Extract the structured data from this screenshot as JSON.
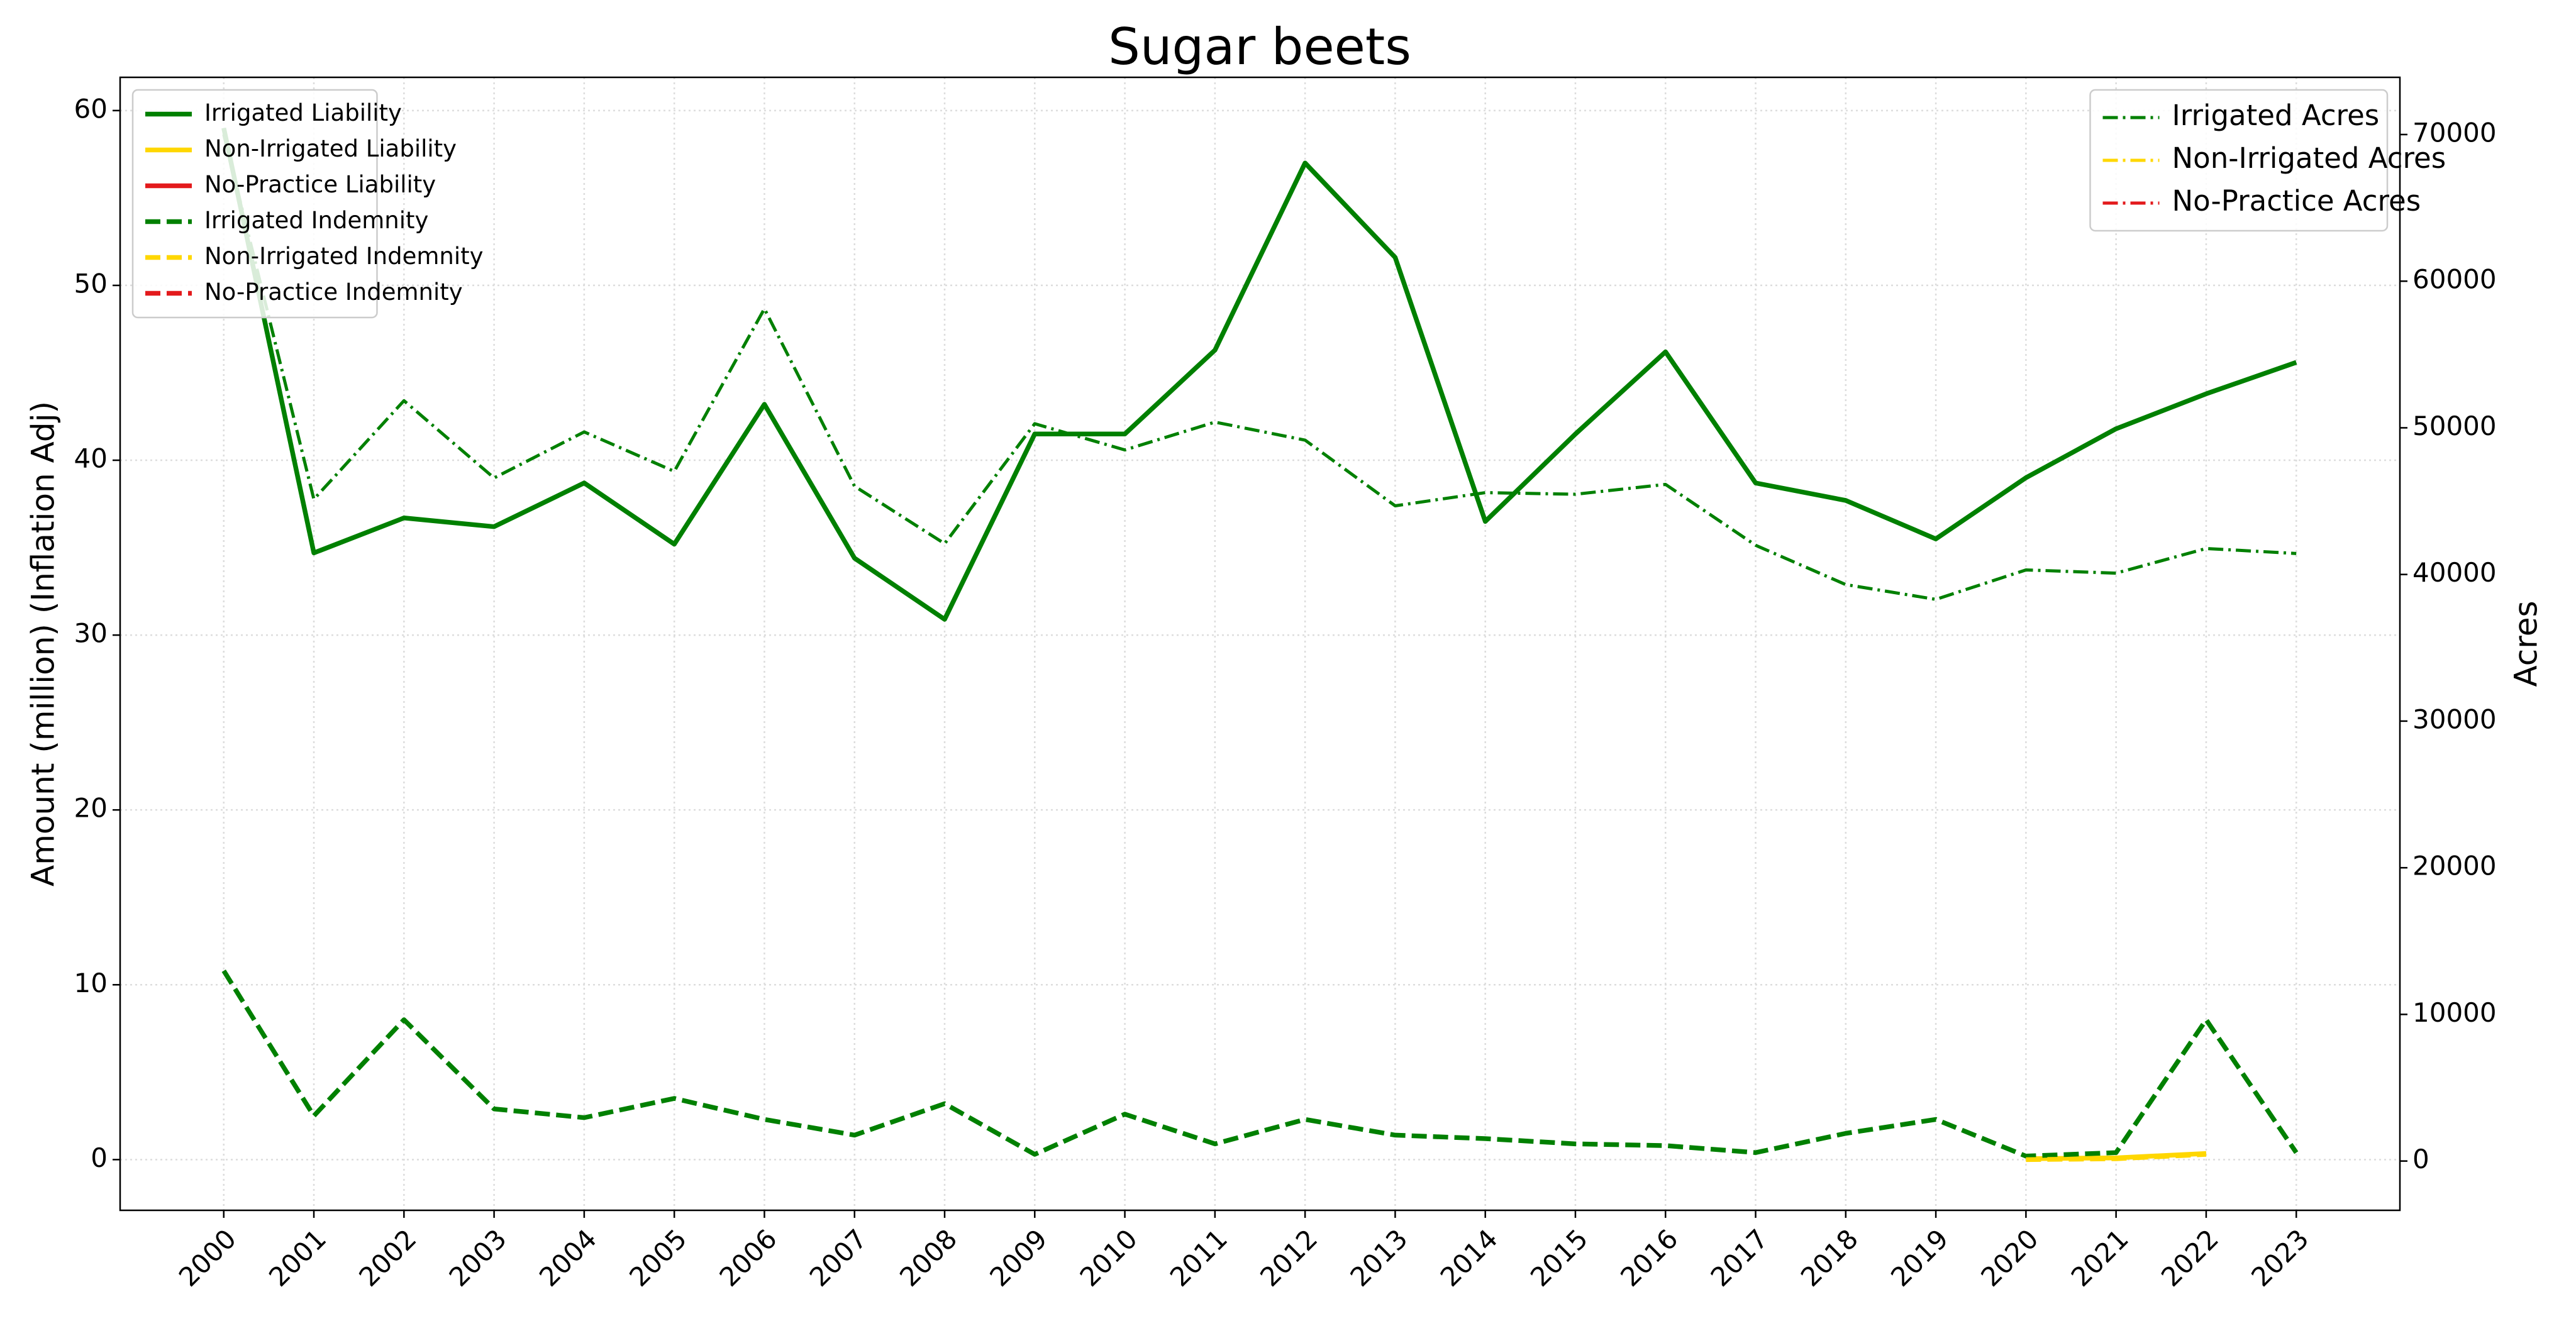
{
  "chart_data": {
    "type": "line",
    "title": "Sugar beets",
    "y_label": "Amount (million) (Inflation Adj)",
    "y2_label": "Acres",
    "x": [
      2000,
      2001,
      2002,
      2003,
      2004,
      2005,
      2006,
      2007,
      2008,
      2009,
      2010,
      2011,
      2012,
      2013,
      2014,
      2015,
      2016,
      2017,
      2018,
      2019,
      2020,
      2021,
      2022,
      2023
    ],
    "xlim": [
      1998.85,
      2024.15
    ],
    "xticks": [
      2000,
      2001,
      2002,
      2003,
      2004,
      2005,
      2006,
      2007,
      2008,
      2009,
      2010,
      2011,
      2012,
      2013,
      2014,
      2015,
      2016,
      2017,
      2018,
      2019,
      2020,
      2021,
      2022,
      2023
    ],
    "ylim": [
      -2.9,
      61.9
    ],
    "yticks": [
      0,
      10,
      20,
      30,
      40,
      50,
      60
    ],
    "y2lim": [
      -3360,
      73900
    ],
    "y2ticks": [
      0,
      10000,
      20000,
      30000,
      40000,
      50000,
      60000,
      70000
    ],
    "grid": true,
    "legend": "upper left",
    "legend2": "upper right",
    "series": [
      {
        "name": "Irrigated Liability",
        "color": "#008000",
        "linestyle": "solid",
        "values": [
          59.0,
          34.7,
          36.7,
          36.2,
          38.7,
          35.2,
          43.2,
          34.4,
          30.9,
          41.5,
          41.5,
          46.3,
          57.0,
          51.6,
          36.5,
          41.5,
          46.2,
          38.7,
          37.7,
          35.5,
          39.0,
          41.8,
          43.8,
          45.6
        ]
      },
      {
        "name": "Non-Irrigated Liability",
        "color": "#ffd700",
        "linestyle": "solid",
        "values": [
          null,
          null,
          null,
          null,
          null,
          null,
          null,
          null,
          null,
          null,
          null,
          null,
          null,
          null,
          null,
          null,
          null,
          null,
          null,
          null,
          0.05,
          0.1,
          0.35,
          null
        ]
      },
      {
        "name": "No-Practice Liability",
        "color": "#e31a1c",
        "linestyle": "solid",
        "values": [
          null,
          null,
          null,
          null,
          null,
          null,
          null,
          null,
          null,
          null,
          null,
          null,
          null,
          null,
          null,
          null,
          null,
          null,
          null,
          null,
          null,
          null,
          null,
          null
        ]
      },
      {
        "name": "Irrigated Indemnity",
        "color": "#008000",
        "linestyle": "dashed",
        "values": [
          10.8,
          2.5,
          8.0,
          2.9,
          2.4,
          3.5,
          2.3,
          1.4,
          3.2,
          0.3,
          2.6,
          0.9,
          2.3,
          1.4,
          1.2,
          0.9,
          0.8,
          0.4,
          1.5,
          2.3,
          0.2,
          0.4,
          8.0,
          0.4
        ]
      },
      {
        "name": "Non-Irrigated Indemnity",
        "color": "#ffd700",
        "linestyle": "dashed",
        "values": [
          null,
          null,
          null,
          null,
          null,
          null,
          null,
          null,
          null,
          null,
          null,
          null,
          null,
          null,
          null,
          null,
          null,
          null,
          null,
          null,
          0.0,
          0.05,
          0.3,
          null
        ]
      },
      {
        "name": "No-Practice Indemnity",
        "color": "#e31a1c",
        "linestyle": "dashed",
        "values": [
          null,
          null,
          null,
          null,
          null,
          null,
          null,
          null,
          null,
          null,
          null,
          null,
          null,
          null,
          null,
          null,
          null,
          null,
          null,
          null,
          null,
          null,
          null,
          null
        ]
      },
      {
        "name": "Irrigated Acres",
        "color": "#008000",
        "linestyle": "dashdot",
        "axis": "y2",
        "values": [
          70000,
          45130,
          51850,
          46580,
          49720,
          47030,
          58120,
          46020,
          42100,
          50280,
          48490,
          50390,
          49160,
          44680,
          45580,
          45470,
          46140,
          41990,
          39310,
          38300,
          40310,
          40090,
          41770,
          41430
        ]
      },
      {
        "name": "Non-Irrigated Acres",
        "color": "#ffd700",
        "linestyle": "dashdot",
        "axis": "y2",
        "values": [
          null,
          null,
          null,
          null,
          null,
          null,
          null,
          null,
          null,
          null,
          null,
          null,
          null,
          null,
          null,
          null,
          null,
          null,
          null,
          null,
          null,
          null,
          null,
          null
        ]
      },
      {
        "name": "No-Practice Acres",
        "color": "#e31a1c",
        "linestyle": "dashdot",
        "axis": "y2",
        "values": [
          null,
          null,
          null,
          null,
          null,
          null,
          null,
          null,
          null,
          null,
          null,
          null,
          null,
          null,
          null,
          null,
          null,
          null,
          null,
          null,
          null,
          null,
          null,
          null
        ]
      }
    ]
  }
}
